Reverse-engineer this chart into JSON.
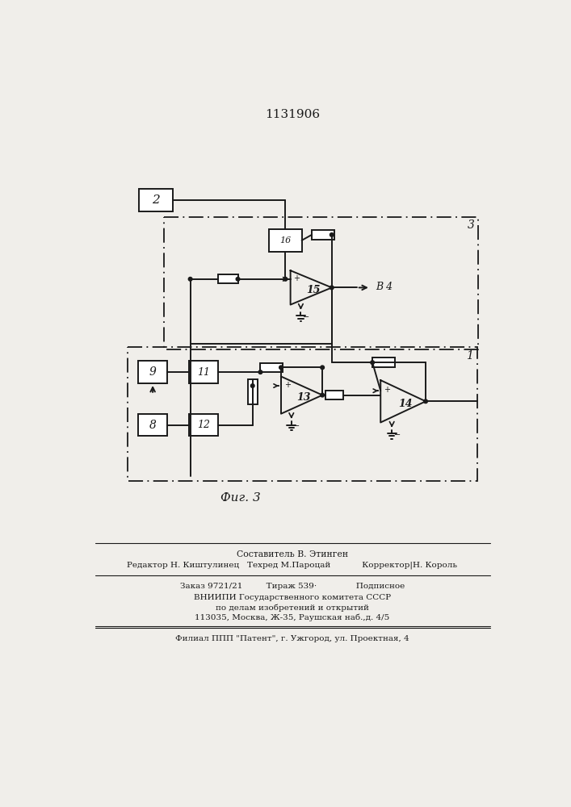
{
  "title": "1131906",
  "fig_label": "Фиг. 3",
  "bg_color": "#f0eeea",
  "line_color": "#1a1a1a",
  "footer_lines": [
    "Составитель В. Этинген",
    "Редактор Н. Киштулинец   Техред М.Пароцай            Корректор|Н. Король",
    "Заказ 9721/21         Тираж 539·               Подписное",
    "ВНИИПИ Государственного комитета СССР",
    "по делам изобретений и открытий",
    "113035, Москва, Ж-35, Раушская наб.,д. 4/5",
    "Филиал ППП \"Патент\", г. Ужгород, ул. Проектная, 4"
  ]
}
